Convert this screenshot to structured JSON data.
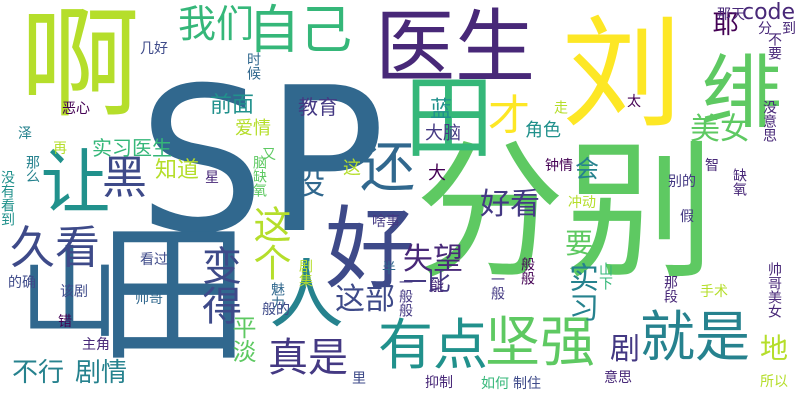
{
  "words": [
    {
      "text": "SP",
      "color": "#31688e",
      "vertical": false
    },
    {
      "text": "分别",
      "color": "#5ec962",
      "vertical": false
    },
    {
      "text": "田",
      "color": "#31688e",
      "vertical": true
    },
    {
      "text": "啊",
      "color": "#b5de2b",
      "vertical": true
    },
    {
      "text": "医生",
      "color": "#482878",
      "vertical": false
    },
    {
      "text": "山",
      "color": "#31688e",
      "vertical": true
    },
    {
      "text": "刘",
      "color": "#fde725",
      "vertical": true
    },
    {
      "text": "好",
      "color": "#3e4a89",
      "vertical": false
    },
    {
      "text": "田",
      "color": "#35b779",
      "vertical": true
    },
    {
      "text": "坚强",
      "color": "#5ec962",
      "vertical": false
    },
    {
      "text": "人",
      "color": "#26828e",
      "vertical": true
    },
    {
      "text": "有点",
      "color": "#21918c",
      "vertical": false
    },
    {
      "text": "就是",
      "color": "#26828e",
      "vertical": false
    },
    {
      "text": "自己",
      "color": "#35b779",
      "vertical": false
    },
    {
      "text": "我们",
      "color": "#35b779",
      "vertical": false
    },
    {
      "text": "让",
      "color": "#21918c",
      "vertical": true
    },
    {
      "text": "黑",
      "color": "#3e4a89",
      "vertical": false
    },
    {
      "text": "还",
      "color": "#31688e",
      "vertical": false
    },
    {
      "text": "久看",
      "color": "#3e4a89",
      "vertical": false
    },
    {
      "text": "才",
      "color": "#fde725",
      "vertical": false
    },
    {
      "text": "绯",
      "color": "#5ec962",
      "vertical": true
    },
    {
      "text": "真是",
      "color": "#443983",
      "vertical": false
    },
    {
      "text": "这个",
      "color": "#b5de2b",
      "vertical": true
    },
    {
      "text": "变得",
      "color": "#3e4a89",
      "vertical": true
    },
    {
      "text": "没",
      "color": "#31688e",
      "vertical": false
    },
    {
      "text": "这部",
      "color": "#3e4a89",
      "vertical": false
    },
    {
      "text": "失望",
      "color": "#482878",
      "vertical": false
    },
    {
      "text": "要",
      "color": "#5ec962",
      "vertical": false
    },
    {
      "text": "实习",
      "color": "#26828e",
      "vertical": true
    },
    {
      "text": "剧",
      "color": "#443983",
      "vertical": false
    },
    {
      "text": "美女",
      "color": "#5ec962",
      "vertical": false
    },
    {
      "text": "好看",
      "color": "#443983",
      "vertical": false
    },
    {
      "text": "地",
      "color": "#b5de2b",
      "vertical": false
    },
    {
      "text": "不行",
      "color": "#26828e",
      "vertical": false
    },
    {
      "text": "剧情",
      "color": "#26828e",
      "vertical": false
    },
    {
      "text": "前面",
      "color": "#21918c",
      "vertical": false
    },
    {
      "text": "教育",
      "color": "#443983",
      "vertical": false
    },
    {
      "text": "实习医生",
      "color": "#35b779",
      "vertical": false
    },
    {
      "text": "会",
      "color": "#26828e",
      "vertical": false
    },
    {
      "text": "耶",
      "color": "#440154",
      "vertical": true
    },
    {
      "text": "code",
      "color": "#482878",
      "vertical": false
    },
    {
      "text": "蓝",
      "color": "#21918c",
      "vertical": true
    },
    {
      "text": "平淡",
      "color": "#5ec962",
      "vertical": true
    },
    {
      "text": "知道",
      "color": "#b5de2b",
      "vertical": false
    },
    {
      "text": "一比",
      "color": "#443983",
      "vertical": false
    },
    {
      "text": "大脑",
      "color": "#443983",
      "vertical": false
    },
    {
      "text": "角色",
      "color": "#21918c",
      "vertical": false
    },
    {
      "text": "爱情",
      "color": "#b5de2b",
      "vertical": false
    },
    {
      "text": "大",
      "color": "#440154",
      "vertical": false
    },
    {
      "text": "这",
      "color": "#b5de2b",
      "vertical": false
    },
    {
      "text": "几好",
      "color": "#3e4a89",
      "vertical": false
    },
    {
      "text": "那天",
      "color": "#482878",
      "vertical": false
    },
    {
      "text": "分",
      "color": "#482878",
      "vertical": false
    },
    {
      "text": "到",
      "color": "#482878",
      "vertical": false
    },
    {
      "text": "时候",
      "color": "#31688e",
      "vertical": true
    },
    {
      "text": "走",
      "color": "#b5de2b",
      "vertical": true
    },
    {
      "text": "太",
      "color": "#440154",
      "vertical": false
    },
    {
      "text": "没意思",
      "color": "#482878",
      "vertical": true
    },
    {
      "text": "不要",
      "color": "#482878",
      "vertical": true
    },
    {
      "text": "恶心",
      "color": "#440154",
      "vertical": false
    },
    {
      "text": "泽",
      "color": "#26828e",
      "vertical": false
    },
    {
      "text": "再",
      "color": "#b5de2b",
      "vertical": false
    },
    {
      "text": "那么",
      "color": "#26828e",
      "vertical": true
    },
    {
      "text": "没有看到",
      "color": "#21918c",
      "vertical": true
    },
    {
      "text": "脑缺氧",
      "color": "#5ec962",
      "vertical": true
    },
    {
      "text": "又",
      "color": "#5ec962",
      "vertical": false
    },
    {
      "text": "星",
      "color": "#482878",
      "vertical": false
    },
    {
      "text": "冲动",
      "color": "#b5de2b",
      "vertical": false
    },
    {
      "text": "钟情",
      "color": "#440154",
      "vertical": false
    },
    {
      "text": "智",
      "color": "#482878",
      "vertical": false
    },
    {
      "text": "缺氧",
      "color": "#482878",
      "vertical": true
    },
    {
      "text": "别的",
      "color": "#443983",
      "vertical": false
    },
    {
      "text": "啥事",
      "color": "#443983",
      "vertical": false
    },
    {
      "text": "假",
      "color": "#443983",
      "vertical": false
    },
    {
      "text": "魅力",
      "color": "#31688e",
      "vertical": true
    },
    {
      "text": "般般",
      "color": "#440154",
      "vertical": true
    },
    {
      "text": "一般般",
      "color": "#443983",
      "vertical": true
    },
    {
      "text": "一般",
      "color": "#443983",
      "vertical": true
    },
    {
      "text": "山下",
      "color": "#35b779",
      "vertical": true
    },
    {
      "text": "看过",
      "color": "#3e4a89",
      "vertical": false
    },
    {
      "text": "该剧",
      "color": "#3e4a89",
      "vertical": false
    },
    {
      "text": "的确",
      "color": "#3e4a89",
      "vertical": false
    },
    {
      "text": "剧集",
      "color": "#b5de2b",
      "vertical": true
    },
    {
      "text": "半",
      "color": "#31688e",
      "vertical": false
    },
    {
      "text": "能",
      "color": "#482878",
      "vertical": false
    },
    {
      "text": "那段",
      "color": "#482878",
      "vertical": true
    },
    {
      "text": "手术",
      "color": "#b5de2b",
      "vertical": false
    },
    {
      "text": "帅哥美女",
      "color": "#482878",
      "vertical": true
    },
    {
      "text": "帅哥",
      "color": "#31688e",
      "vertical": false
    },
    {
      "text": "般的",
      "color": "#3e4a89",
      "vertical": false
    },
    {
      "text": "错",
      "color": "#440154",
      "vertical": false
    },
    {
      "text": "主角",
      "color": "#482878",
      "vertical": false
    },
    {
      "text": "抑制",
      "color": "#482878",
      "vertical": false
    },
    {
      "text": "如何",
      "color": "#35b779",
      "vertical": false
    },
    {
      "text": "制住",
      "color": "#3e4a89",
      "vertical": false
    },
    {
      "text": "里",
      "color": "#3e4a89",
      "vertical": false
    },
    {
      "text": "意思",
      "color": "#482878",
      "vertical": false
    },
    {
      "text": "所以",
      "color": "#b5de2b",
      "vertical": false
    }
  ]
}
